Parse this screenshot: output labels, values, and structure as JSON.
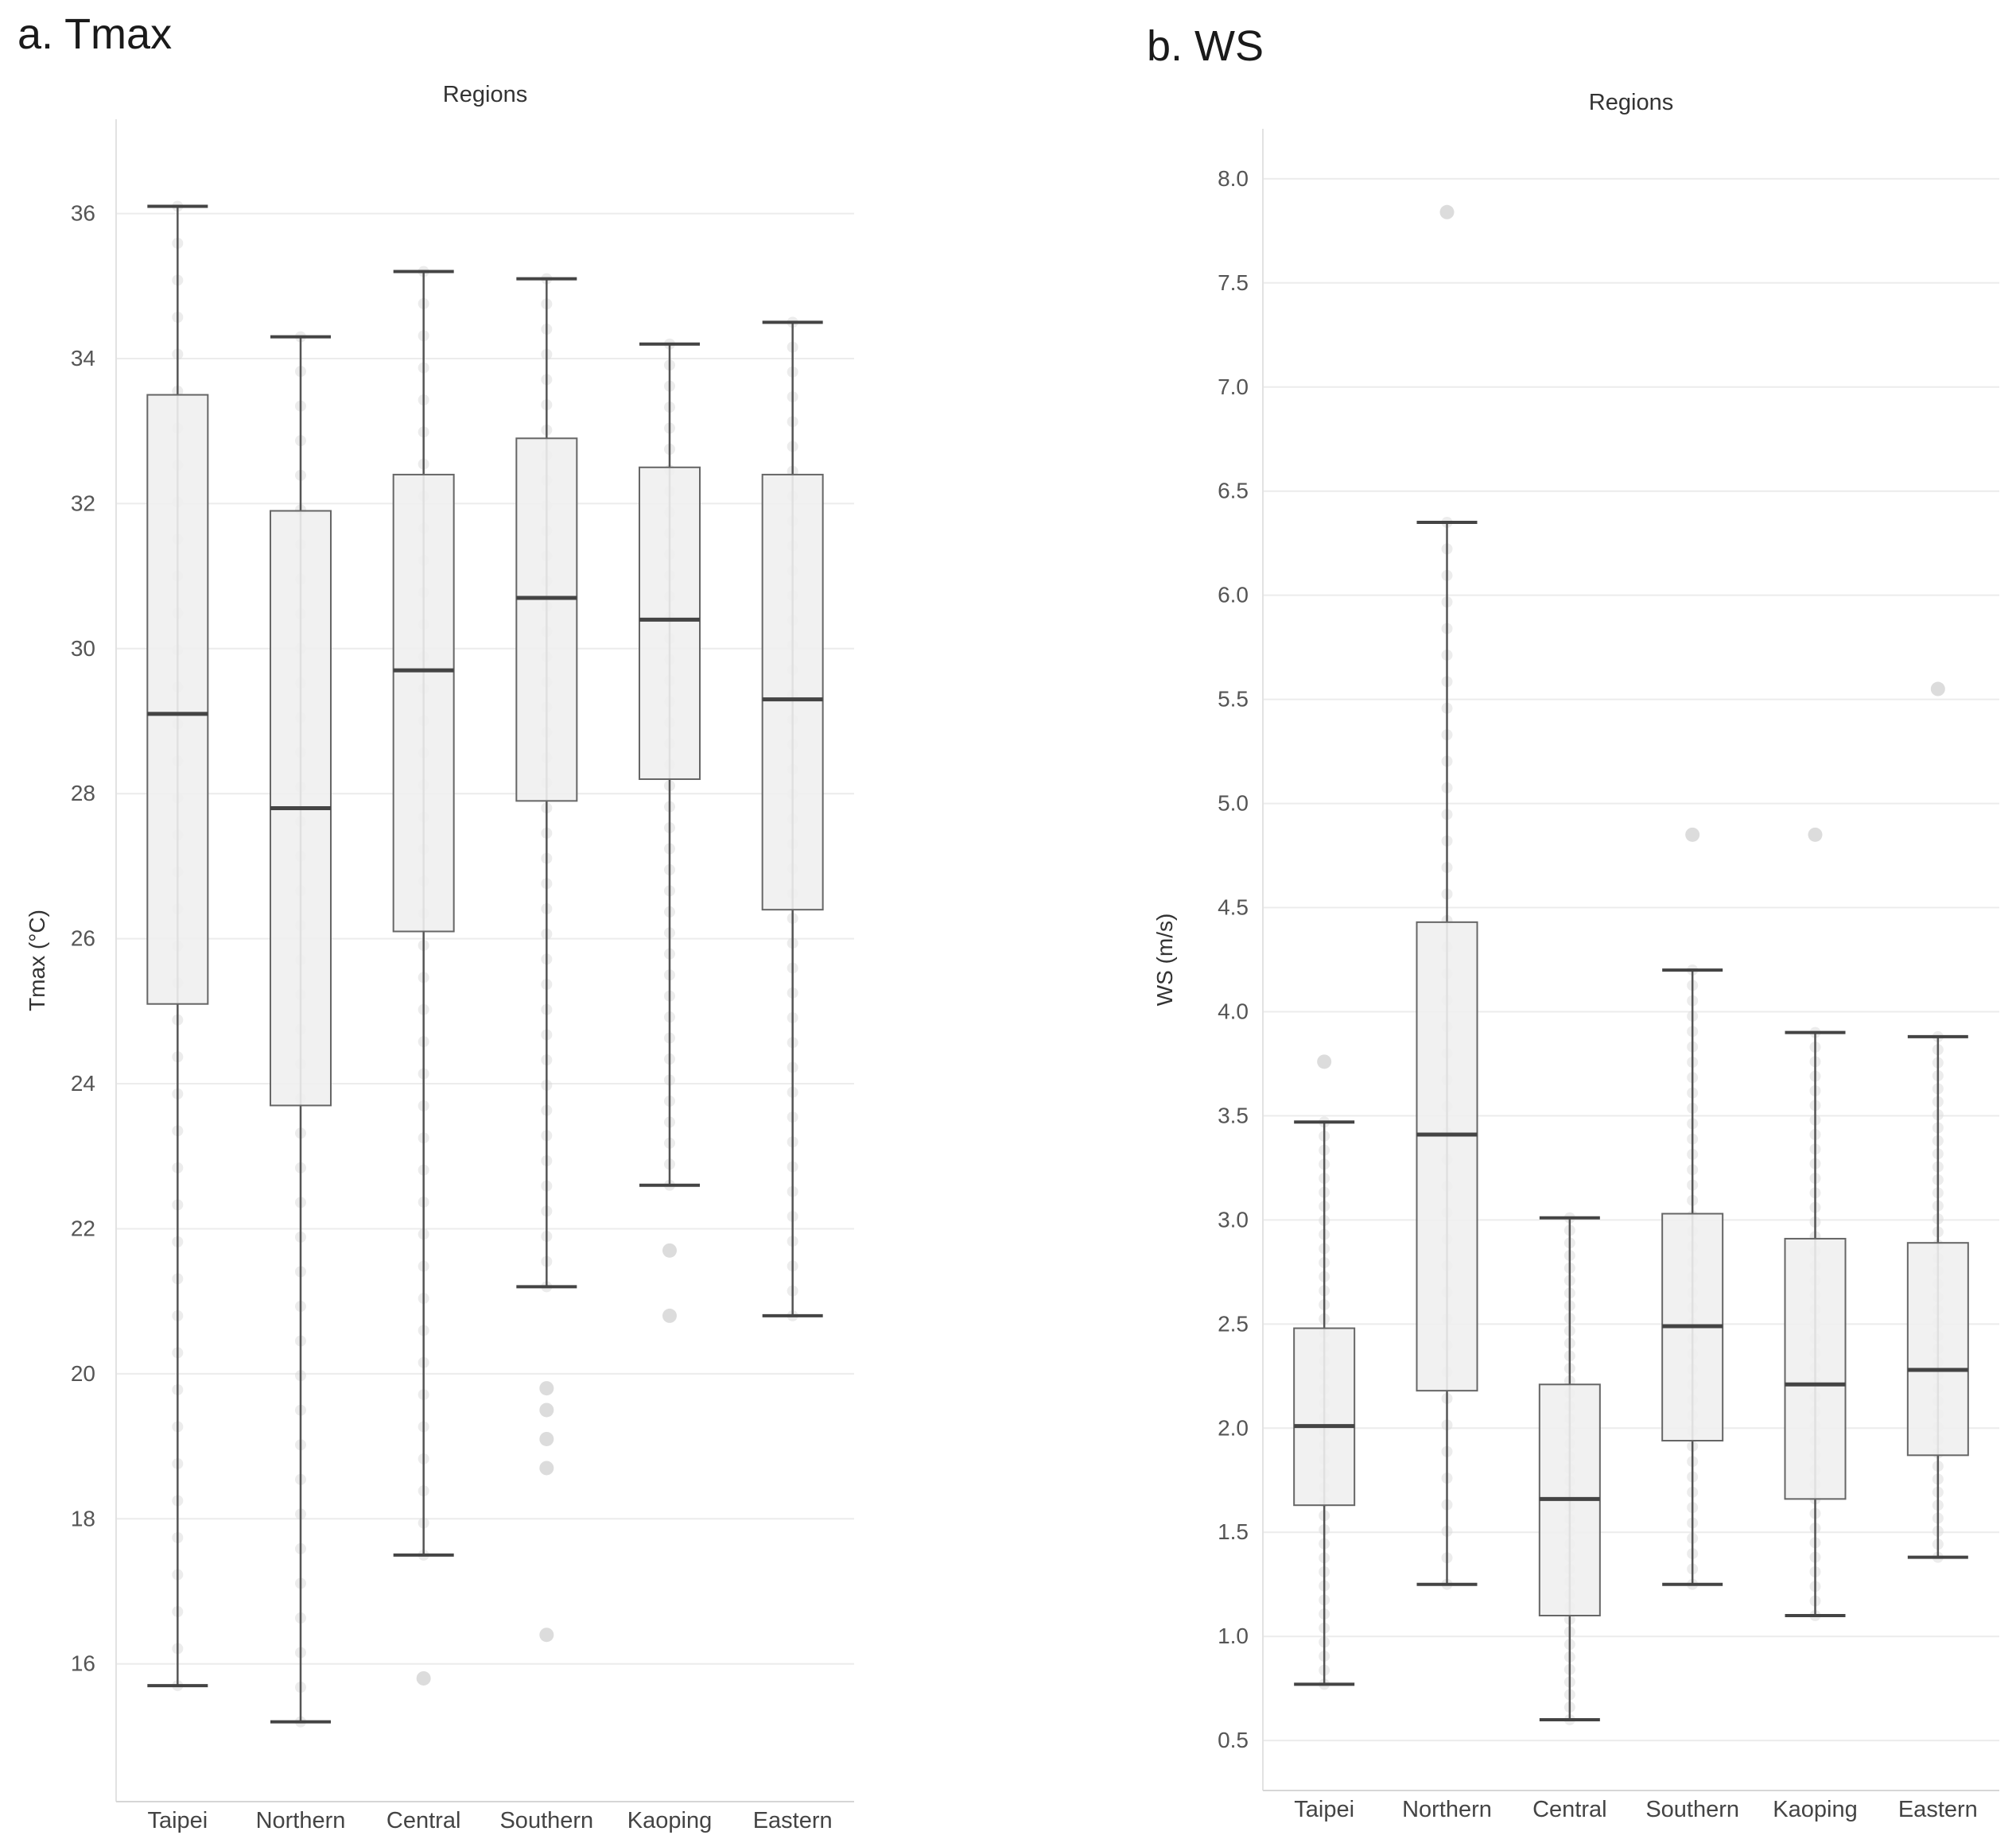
{
  "figure": {
    "panel_a_label": "a. Tmax",
    "panel_b_label": "b. WS"
  },
  "chart_data": [
    {
      "type": "box",
      "id": "tmax",
      "title": "Regions",
      "xlabel": "",
      "ylabel": "Tmax (°C)",
      "ylim": [
        14.1,
        37.3
      ],
      "yticks": [
        16,
        18,
        20,
        22,
        24,
        26,
        28,
        30,
        32,
        34,
        36
      ],
      "categories": [
        "Taipei",
        "Northern",
        "Central",
        "Southern",
        "Kaoping",
        "Eastern"
      ],
      "boxes": [
        {
          "whisker_low": 15.7,
          "q1": 25.1,
          "median": 29.1,
          "q3": 33.5,
          "whisker_high": 36.1,
          "outliers": []
        },
        {
          "whisker_low": 15.2,
          "q1": 23.7,
          "median": 27.8,
          "q3": 31.9,
          "whisker_high": 34.3,
          "outliers": []
        },
        {
          "whisker_low": 17.5,
          "q1": 26.1,
          "median": 29.7,
          "q3": 32.4,
          "whisker_high": 35.2,
          "outliers": [
            15.8
          ]
        },
        {
          "whisker_low": 21.2,
          "q1": 27.9,
          "median": 30.7,
          "q3": 32.9,
          "whisker_high": 35.1,
          "outliers": [
            19.8,
            19.5,
            19.1,
            18.7,
            16.4
          ]
        },
        {
          "whisker_low": 22.6,
          "q1": 28.2,
          "median": 30.4,
          "q3": 32.5,
          "whisker_high": 34.2,
          "outliers": [
            21.7,
            20.8
          ]
        },
        {
          "whisker_low": 20.8,
          "q1": 26.4,
          "median": 29.3,
          "q3": 32.4,
          "whisker_high": 34.5,
          "outliers": []
        }
      ]
    },
    {
      "type": "box",
      "id": "ws",
      "title": "Regions",
      "xlabel": "",
      "ylabel": "WS (m/s)",
      "ylim": [
        0.26,
        8.24
      ],
      "yticks": [
        "0.5",
        "1.0",
        "1.5",
        "2.0",
        "2.5",
        "3.0",
        "3.5",
        "4.0",
        "4.5",
        "5.0",
        "5.5",
        "6.0",
        "6.5",
        "7.0",
        "7.5",
        "8.0"
      ],
      "categories": [
        "Taipei",
        "Northern",
        "Central",
        "Southern",
        "Kaoping",
        "Eastern"
      ],
      "boxes": [
        {
          "whisker_low": 0.77,
          "q1": 1.63,
          "median": 2.01,
          "q3": 2.48,
          "whisker_high": 3.47,
          "outliers": [
            3.76
          ]
        },
        {
          "whisker_low": 1.25,
          "q1": 2.18,
          "median": 3.41,
          "q3": 4.43,
          "whisker_high": 6.35,
          "outliers": [
            7.84
          ]
        },
        {
          "whisker_low": 0.6,
          "q1": 1.1,
          "median": 1.66,
          "q3": 2.21,
          "whisker_high": 3.01,
          "outliers": []
        },
        {
          "whisker_low": 1.25,
          "q1": 1.94,
          "median": 2.49,
          "q3": 3.03,
          "whisker_high": 4.2,
          "outliers": [
            4.85
          ]
        },
        {
          "whisker_low": 1.1,
          "q1": 1.66,
          "median": 2.21,
          "q3": 2.91,
          "whisker_high": 3.9,
          "outliers": [
            4.85
          ]
        },
        {
          "whisker_low": 1.38,
          "q1": 1.87,
          "median": 2.28,
          "q3": 2.89,
          "whisker_high": 3.88,
          "outliers": [
            5.55
          ]
        }
      ]
    }
  ]
}
